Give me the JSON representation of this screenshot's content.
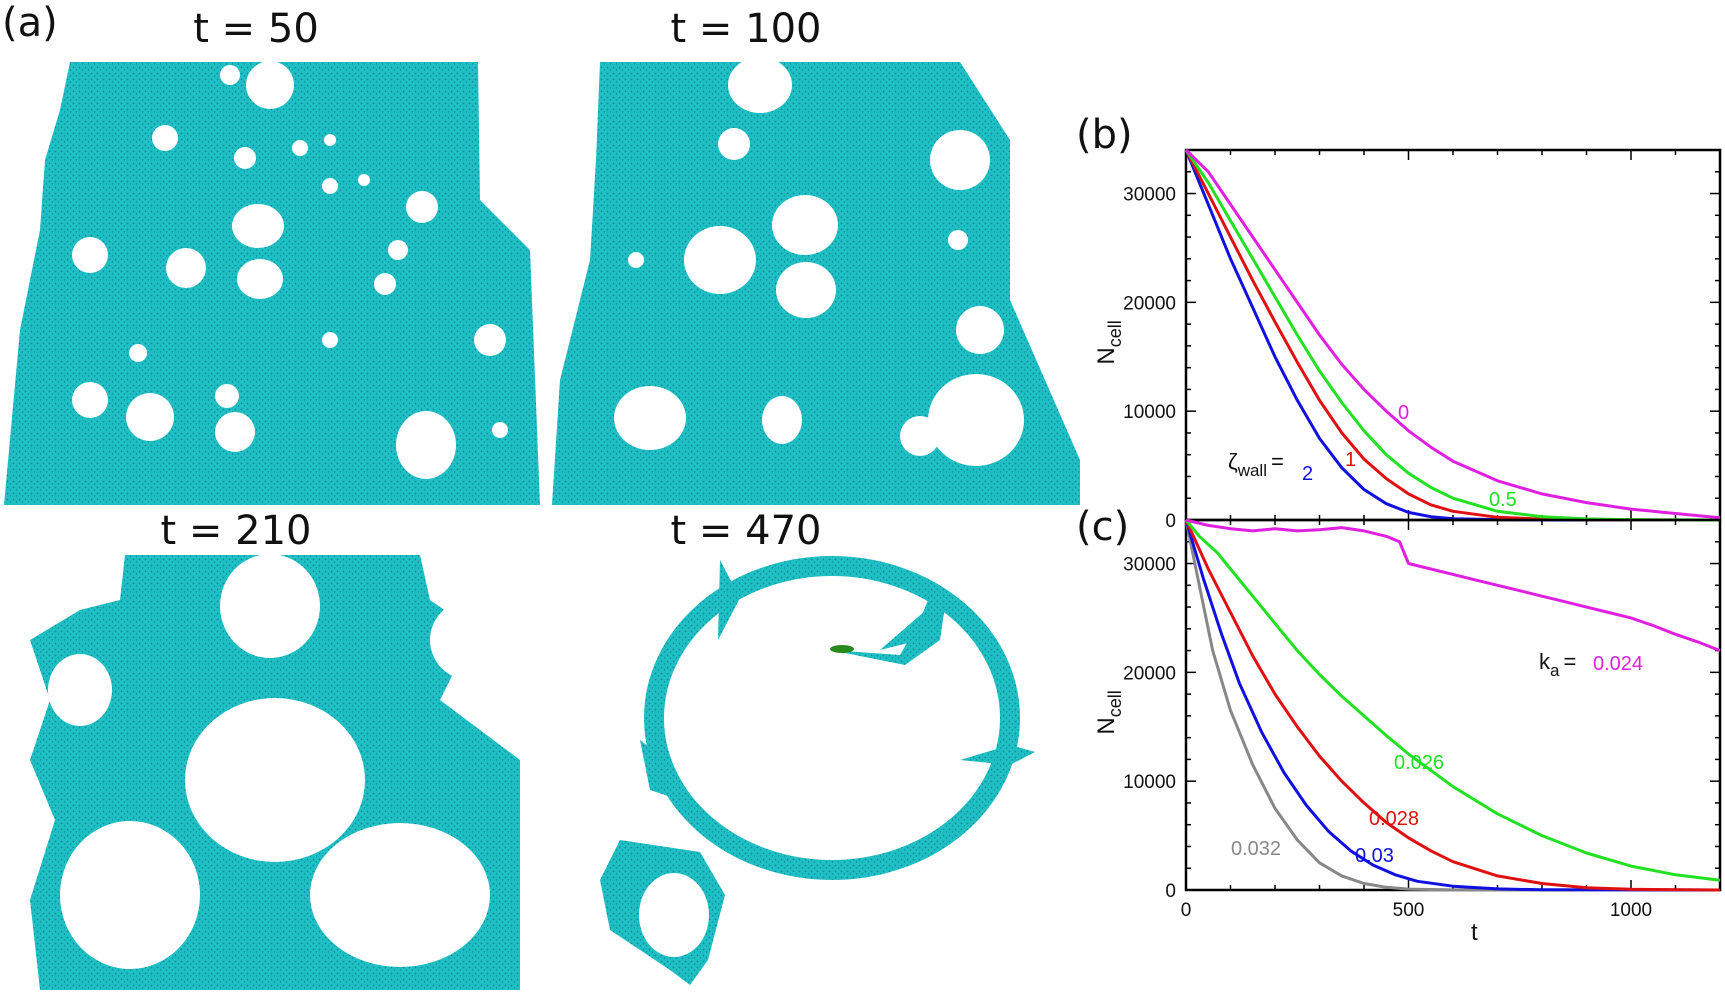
{
  "panels": {
    "a": {
      "label": "(a)",
      "snapshots": [
        {
          "title": "t = 50"
        },
        {
          "title": "t = 100"
        },
        {
          "title": "t = 210"
        },
        {
          "title": "t = 470"
        }
      ]
    },
    "b": {
      "label": "(b)"
    },
    "c": {
      "label": "(c)"
    }
  },
  "colors": {
    "tissue": "#1fbfc6",
    "tissue_dark": "#0d8a90",
    "green_cells": "#2a8a1e",
    "magenta": "#e020e0",
    "green": "#22e022",
    "red": "#e01010",
    "blue": "#1010e0",
    "gray": "#888888"
  },
  "chart_data": [
    {
      "type": "line",
      "panel": "(b)",
      "xlabel": "",
      "ylabel": "N_cell",
      "xlim": [
        0,
        1200
      ],
      "ylim": [
        0,
        34000
      ],
      "yticks": [
        "0",
        "10000",
        "20000",
        "30000"
      ],
      "legend_prefix": "ζ_wall =",
      "series": [
        {
          "name": "2",
          "color": "#1010e0",
          "points": [
            [
              0,
              34000
            ],
            [
              50,
              29000
            ],
            [
              100,
              24000
            ],
            [
              150,
              19500
            ],
            [
              200,
              15000
            ],
            [
              250,
              11000
            ],
            [
              300,
              7500
            ],
            [
              350,
              4800
            ],
            [
              400,
              2800
            ],
            [
              450,
              1500
            ],
            [
              500,
              700
            ],
            [
              550,
              300
            ],
            [
              600,
              120
            ],
            [
              700,
              40
            ],
            [
              800,
              10
            ],
            [
              1200,
              0
            ]
          ]
        },
        {
          "name": "1",
          "color": "#e01010",
          "points": [
            [
              0,
              34000
            ],
            [
              50,
              30000
            ],
            [
              100,
              26000
            ],
            [
              150,
              22000
            ],
            [
              200,
              18200
            ],
            [
              250,
              14500
            ],
            [
              300,
              11000
            ],
            [
              350,
              8000
            ],
            [
              400,
              5600
            ],
            [
              450,
              3800
            ],
            [
              500,
              2400
            ],
            [
              550,
              1400
            ],
            [
              600,
              800
            ],
            [
              700,
              250
            ],
            [
              800,
              80
            ],
            [
              900,
              20
            ],
            [
              1200,
              0
            ]
          ]
        },
        {
          "name": "0.5",
          "color": "#22e022",
          "points": [
            [
              0,
              34000
            ],
            [
              50,
              31000
            ],
            [
              100,
              27500
            ],
            [
              150,
              24000
            ],
            [
              200,
              20500
            ],
            [
              250,
              17000
            ],
            [
              300,
              13700
            ],
            [
              350,
              10800
            ],
            [
              400,
              8200
            ],
            [
              450,
              6000
            ],
            [
              500,
              4300
            ],
            [
              550,
              3000
            ],
            [
              600,
              2000
            ],
            [
              700,
              800
            ],
            [
              800,
              300
            ],
            [
              900,
              100
            ],
            [
              1000,
              30
            ],
            [
              1200,
              0
            ]
          ]
        },
        {
          "name": "0",
          "color": "#e020e0",
          "points": [
            [
              0,
              34000
            ],
            [
              50,
              32000
            ],
            [
              100,
              29000
            ],
            [
              150,
              26000
            ],
            [
              200,
              23000
            ],
            [
              250,
              20000
            ],
            [
              300,
              17000
            ],
            [
              350,
              14300
            ],
            [
              400,
              12000
            ],
            [
              450,
              10000
            ],
            [
              500,
              8200
            ],
            [
              550,
              6700
            ],
            [
              600,
              5400
            ],
            [
              700,
              3600
            ],
            [
              800,
              2400
            ],
            [
              900,
              1600
            ],
            [
              1000,
              1000
            ],
            [
              1100,
              600
            ],
            [
              1200,
              200
            ]
          ]
        }
      ],
      "labels": [
        "ζ",
        "wall",
        "=",
        "2",
        "1",
        "0.5",
        "0"
      ]
    },
    {
      "type": "line",
      "panel": "(c)",
      "xlabel": "t",
      "ylabel": "N_cell",
      "xlim": [
        0,
        1200
      ],
      "ylim": [
        0,
        34000
      ],
      "xticks": [
        "0",
        "500",
        "1000"
      ],
      "yticks": [
        "0",
        "10000",
        "20000",
        "30000"
      ],
      "legend_prefix": "k_a =",
      "series": [
        {
          "name": "0.032",
          "color": "#888888",
          "points": [
            [
              0,
              34000
            ],
            [
              30,
              28000
            ],
            [
              60,
              22000
            ],
            [
              100,
              16500
            ],
            [
              150,
              11500
            ],
            [
              200,
              7500
            ],
            [
              250,
              4600
            ],
            [
              300,
              2500
            ],
            [
              350,
              1300
            ],
            [
              400,
              600
            ],
            [
              450,
              250
            ],
            [
              500,
              80
            ],
            [
              600,
              10
            ],
            [
              700,
              0
            ],
            [
              1200,
              0
            ]
          ]
        },
        {
          "name": "0.03",
          "color": "#1010e0",
          "points": [
            [
              0,
              34000
            ],
            [
              40,
              28500
            ],
            [
              80,
              23500
            ],
            [
              120,
              19000
            ],
            [
              170,
              14500
            ],
            [
              220,
              10800
            ],
            [
              270,
              7800
            ],
            [
              320,
              5400
            ],
            [
              370,
              3600
            ],
            [
              420,
              2300
            ],
            [
              470,
              1400
            ],
            [
              520,
              800
            ],
            [
              600,
              350
            ],
            [
              700,
              100
            ],
            [
              800,
              20
            ],
            [
              1200,
              0
            ]
          ]
        },
        {
          "name": "0.028",
          "color": "#e01010",
          "points": [
            [
              0,
              34000
            ],
            [
              50,
              29500
            ],
            [
              100,
              25500
            ],
            [
              150,
              21500
            ],
            [
              200,
              18000
            ],
            [
              250,
              15000
            ],
            [
              300,
              12300
            ],
            [
              350,
              10000
            ],
            [
              400,
              8000
            ],
            [
              450,
              6200
            ],
            [
              500,
              4800
            ],
            [
              550,
              3600
            ],
            [
              600,
              2600
            ],
            [
              700,
              1300
            ],
            [
              800,
              600
            ],
            [
              900,
              200
            ],
            [
              1000,
              60
            ],
            [
              1200,
              0
            ]
          ]
        },
        {
          "name": "0.026",
          "color": "#22e022",
          "points": [
            [
              0,
              34000
            ],
            [
              30,
              32500
            ],
            [
              70,
              31000
            ],
            [
              100,
              29500
            ],
            [
              150,
              27000
            ],
            [
              200,
              24500
            ],
            [
              250,
              22000
            ],
            [
              300,
              19800
            ],
            [
              350,
              17800
            ],
            [
              400,
              16000
            ],
            [
              450,
              14200
            ],
            [
              500,
              12500
            ],
            [
              550,
              11000
            ],
            [
              600,
              9500
            ],
            [
              700,
              7000
            ],
            [
              800,
              5000
            ],
            [
              900,
              3400
            ],
            [
              1000,
              2200
            ],
            [
              1100,
              1400
            ],
            [
              1200,
              900
            ]
          ]
        },
        {
          "name": "0.024",
          "color": "#e020e0",
          "points": [
            [
              0,
              34000
            ],
            [
              50,
              33500
            ],
            [
              100,
              33200
            ],
            [
              150,
              33000
            ],
            [
              200,
              33200
            ],
            [
              250,
              33000
            ],
            [
              300,
              33100
            ],
            [
              350,
              33300
            ],
            [
              400,
              33000
            ],
            [
              450,
              32500
            ],
            [
              480,
              32000
            ],
            [
              500,
              30000
            ],
            [
              550,
              29500
            ],
            [
              600,
              29000
            ],
            [
              650,
              28500
            ],
            [
              700,
              28000
            ],
            [
              750,
              27500
            ],
            [
              800,
              27000
            ],
            [
              850,
              26500
            ],
            [
              900,
              26000
            ],
            [
              950,
              25500
            ],
            [
              1000,
              25000
            ],
            [
              1050,
              24300
            ],
            [
              1100,
              23500
            ],
            [
              1150,
              22800
            ],
            [
              1200,
              22000
            ]
          ]
        }
      ],
      "labels": [
        "k",
        "a",
        "=",
        "0.024",
        "0.026",
        "0.028",
        "0.03",
        "0.032"
      ]
    }
  ]
}
